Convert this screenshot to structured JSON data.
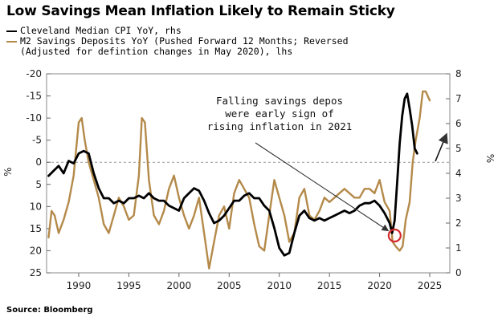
{
  "chart_data": {
    "type": "line",
    "title": "Low Savings Mean Inflation Likely to Remain Sticky",
    "source": "Source: Bloomberg",
    "grid": false,
    "legend_position": "top-left",
    "x_ticks": [
      "1990",
      "1995",
      "2000",
      "2005",
      "2010",
      "2015",
      "2020",
      "2025"
    ],
    "xlim": [
      1986.8,
      2027
    ],
    "y_left": {
      "unit": "%",
      "reversed": true,
      "lim": [
        -20,
        25
      ],
      "tick_labels": [
        "-20",
        "-15",
        "-10",
        "-5",
        "0",
        "5",
        "10",
        "15",
        "20",
        "25"
      ],
      "tick_values": [
        -20,
        -15,
        -10,
        -5,
        0,
        5,
        10,
        15,
        20,
        25
      ]
    },
    "y_right": {
      "unit": "%",
      "reversed": false,
      "lim": [
        0,
        8
      ],
      "tick_labels": [
        "0",
        "1",
        "2",
        "3",
        "4",
        "5",
        "6",
        "7",
        "8"
      ],
      "tick_values": [
        0,
        1,
        2,
        3,
        4,
        5,
        6,
        7,
        8
      ]
    },
    "series": [
      {
        "name": "Cleveland Median CPI YoY, rhs",
        "axis": "right",
        "color": "#000000",
        "x": [
          1987.0,
          1987.5,
          1988.0,
          1988.5,
          1989.0,
          1989.5,
          1990.0,
          1990.5,
          1991.0,
          1991.5,
          1992.0,
          1992.5,
          1993.0,
          1993.5,
          1994.0,
          1994.5,
          1995.0,
          1995.5,
          1996.0,
          1996.5,
          1997.0,
          1997.5,
          1998.0,
          1998.5,
          1999.0,
          1999.5,
          2000.0,
          2000.5,
          2001.0,
          2001.5,
          2002.0,
          2002.5,
          2003.0,
          2003.5,
          2004.0,
          2004.5,
          2005.0,
          2005.5,
          2006.0,
          2006.5,
          2007.0,
          2007.5,
          2008.0,
          2008.5,
          2009.0,
          2009.5,
          2010.0,
          2010.5,
          2011.0,
          2011.5,
          2012.0,
          2012.5,
          2013.0,
          2013.5,
          2014.0,
          2014.5,
          2015.0,
          2015.5,
          2016.0,
          2016.5,
          2017.0,
          2017.5,
          2018.0,
          2018.5,
          2019.0,
          2019.5,
          2020.0,
          2020.5,
          2021.0,
          2021.25,
          2021.5,
          2021.75,
          2022.0,
          2022.25,
          2022.5,
          2022.75,
          2023.0,
          2023.25,
          2023.5,
          2023.75
        ],
        "values": [
          3.9,
          4.1,
          4.3,
          4.0,
          4.5,
          4.4,
          4.8,
          4.9,
          4.8,
          4.0,
          3.4,
          3.0,
          3.0,
          2.8,
          2.9,
          2.8,
          3.0,
          3.0,
          3.1,
          3.0,
          3.2,
          3.0,
          2.9,
          2.9,
          2.7,
          2.6,
          2.5,
          3.0,
          3.2,
          3.4,
          3.3,
          2.9,
          2.4,
          2.0,
          2.1,
          2.3,
          2.6,
          2.9,
          2.9,
          3.1,
          3.2,
          3.0,
          3.0,
          2.7,
          2.5,
          1.8,
          1.0,
          0.7,
          0.8,
          1.6,
          2.3,
          2.5,
          2.2,
          2.1,
          2.2,
          2.1,
          2.2,
          2.3,
          2.4,
          2.5,
          2.4,
          2.5,
          2.7,
          2.8,
          2.8,
          2.9,
          2.7,
          2.4,
          2.0,
          1.6,
          2.1,
          3.6,
          5.2,
          6.3,
          7.0,
          7.2,
          6.6,
          5.9,
          5.0,
          4.8
        ]
      },
      {
        "name": "M2 Savings Deposits YoY (Pushed Forward 12 Months; Reversed (Adjusted for defintion changes in May 2020), lhs",
        "axis": "left",
        "color": "#b48a4a",
        "x": [
          1987.0,
          1987.3,
          1987.6,
          1988.0,
          1988.5,
          1989.0,
          1989.5,
          1990.0,
          1990.3,
          1990.6,
          1991.0,
          1991.5,
          1992.0,
          1992.5,
          1993.0,
          1993.5,
          1994.0,
          1994.5,
          1995.0,
          1995.5,
          1996.0,
          1996.3,
          1996.6,
          1997.0,
          1997.5,
          1998.0,
          1998.5,
          1999.0,
          1999.5,
          2000.0,
          2000.5,
          2001.0,
          2001.5,
          2002.0,
          2002.5,
          2003.0,
          2003.5,
          2004.0,
          2004.5,
          2005.0,
          2005.5,
          2006.0,
          2006.5,
          2007.0,
          2007.5,
          2008.0,
          2008.5,
          2009.0,
          2009.5,
          2010.0,
          2010.5,
          2011.0,
          2011.5,
          2012.0,
          2012.5,
          2013.0,
          2013.5,
          2014.0,
          2014.5,
          2015.0,
          2015.5,
          2016.0,
          2016.5,
          2017.0,
          2017.5,
          2018.0,
          2018.5,
          2019.0,
          2019.5,
          2020.0,
          2020.5,
          2021.0,
          2021.3,
          2021.6,
          2022.0,
          2022.3,
          2022.6,
          2023.0,
          2023.3,
          2023.6,
          2024.0,
          2024.3,
          2024.6,
          2025.0
        ],
        "values": [
          17,
          11,
          12,
          16,
          13,
          9,
          3,
          -9,
          -10,
          -5,
          0,
          4,
          8,
          14,
          16,
          12,
          8,
          10,
          13,
          12,
          3,
          -10,
          -9,
          4,
          12,
          14,
          11,
          6,
          3,
          8,
          12,
          15,
          12,
          8,
          16,
          24,
          18,
          12,
          10,
          15,
          7,
          4,
          6,
          8,
          14,
          19,
          20,
          12,
          4,
          8,
          12,
          18,
          16,
          8,
          6,
          12,
          13,
          11,
          8,
          9,
          8,
          7,
          6,
          7,
          8,
          8,
          6,
          6,
          7,
          4,
          9,
          11,
          18,
          19,
          20,
          19,
          13,
          9,
          0,
          -5,
          -10,
          -16,
          -16,
          -14
        ]
      }
    ],
    "annotations": [
      {
        "text_lines": [
          "Falling savings depos",
          "were early sign of",
          "rising inflation in 2021"
        ]
      }
    ]
  }
}
